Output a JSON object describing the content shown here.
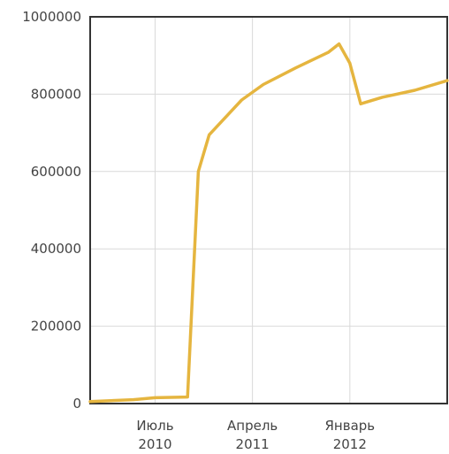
{
  "chart_data": {
    "type": "line",
    "title": "",
    "xlabel": "",
    "ylabel": "",
    "grid": true,
    "ylim": [
      0,
      1000000
    ],
    "yticks": [
      {
        "value": 0,
        "label": "0"
      },
      {
        "value": 200000,
        "label": "200000"
      },
      {
        "value": 400000,
        "label": "400000"
      },
      {
        "value": 600000,
        "label": "600000"
      },
      {
        "value": 800000,
        "label": "800000"
      },
      {
        "value": 1000000,
        "label": "1000000"
      }
    ],
    "xlim": [
      "2010-01",
      "2012-10"
    ],
    "xticks": [
      {
        "x": "2010-07",
        "label": "Июль",
        "sublabel": "2010"
      },
      {
        "x": "2011-04",
        "label": "Апрель",
        "sublabel": "2011"
      },
      {
        "x": "2012-01",
        "label": "Январь",
        "sublabel": "2012"
      }
    ],
    "series": [
      {
        "color": "#E5B53F",
        "points": [
          {
            "x": "2010-01",
            "y": 5000
          },
          {
            "x": "2010-05",
            "y": 10000
          },
          {
            "x": "2010-07",
            "y": 15000
          },
          {
            "x": "2010-10",
            "y": 17000
          },
          {
            "x": "2010-11",
            "y": 600000
          },
          {
            "x": "2010-12",
            "y": 695000
          },
          {
            "x": "2011-03",
            "y": 785000
          },
          {
            "x": "2011-05",
            "y": 825000
          },
          {
            "x": "2011-08",
            "y": 868000
          },
          {
            "x": "2011-11",
            "y": 908000
          },
          {
            "x": "2011-12",
            "y": 930000
          },
          {
            "x": "2012-01",
            "y": 880000
          },
          {
            "x": "2012-02",
            "y": 775000
          },
          {
            "x": "2012-04",
            "y": 792000
          },
          {
            "x": "2012-07",
            "y": 810000
          },
          {
            "x": "2012-10",
            "y": 835000
          }
        ]
      }
    ]
  }
}
